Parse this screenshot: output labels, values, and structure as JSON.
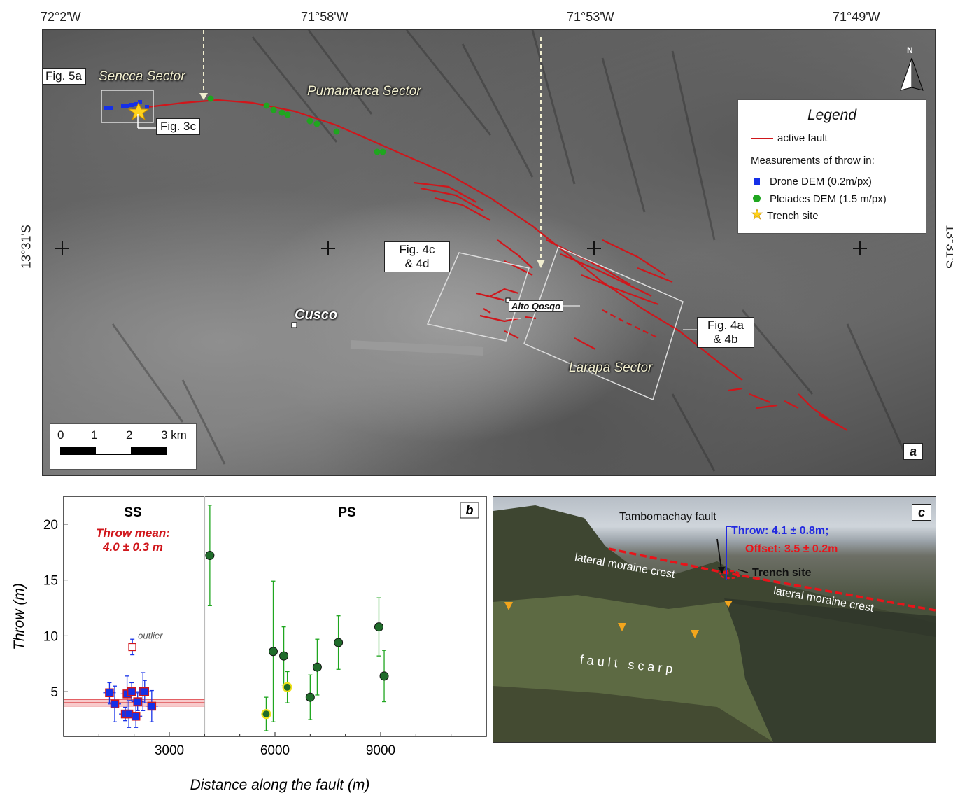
{
  "map": {
    "coords_top": [
      "72°2'W",
      "71°58'W",
      "71°53'W",
      "71°49'W"
    ],
    "coord_left": "13°31'S",
    "coord_right": "13°31'S",
    "sectors": {
      "sencca": "Sencca Sector",
      "pumamarca": "Pumamarca Sector",
      "larapa": "Larapa Sector"
    },
    "places": {
      "cusco": "Cusco",
      "alto_qosqo": "Alto Qosqo"
    },
    "fig_labels": {
      "fig5a": "Fig. 5a",
      "fig3c": "Fig. 3c",
      "fig4c_l1": "Fig. 4c",
      "fig4c_l2": "& 4d",
      "fig4a_l1": "Fig. 4a",
      "fig4a_l2": "& 4b"
    },
    "north": "N",
    "panel": "a",
    "scale": {
      "ticks": [
        "0",
        "1",
        "2",
        "3 km"
      ]
    },
    "legend": {
      "title": "Legend",
      "fault": "active fault",
      "heading": "Measurements of throw in:",
      "drone": "Drone DEM (0.2m/px)",
      "pleiades": "Pleiades DEM (1.5 m/px)",
      "trench": "Trench site"
    },
    "colors": {
      "fault": "#d0161b",
      "drone": "#1530e8",
      "pleiades": "#1fa61f",
      "trench": "#ffd21a"
    }
  },
  "chart_data": {
    "type": "scatter",
    "panel": "b",
    "xlabel": "Distance along the fault (m)",
    "ylabel": "Throw (m)",
    "xlim": [
      0,
      12000
    ],
    "ylim": [
      1,
      22.5
    ],
    "xticks": [
      3000,
      6000,
      9000
    ],
    "yticks": [
      5,
      10,
      15,
      20
    ],
    "divider_x": 4000,
    "section_labels": {
      "ss": "SS",
      "ps": "PS"
    },
    "mean_text_l1": "Throw mean:",
    "mean_text_l2": "4.0 ± 0.3 m",
    "mean": {
      "value": 4.0,
      "sd": 0.3,
      "x_range": [
        0,
        4000
      ]
    },
    "outlier_label": "outlier",
    "series": [
      {
        "kind": "drone",
        "points": [
          {
            "x": 1300,
            "y": 4.9,
            "err": 0.9
          },
          {
            "x": 1450,
            "y": 3.9,
            "err": 1.6
          },
          {
            "x": 1750,
            "y": 3.0,
            "err": 0.6
          },
          {
            "x": 1800,
            "y": 4.8,
            "err": 1.6
          },
          {
            "x": 1850,
            "y": 3.0,
            "err": 1.2
          },
          {
            "x": 1930,
            "y": 5.0,
            "err": 0.8
          },
          {
            "x": 2050,
            "y": 2.8,
            "err": 1.0
          },
          {
            "x": 2100,
            "y": 4.1,
            "err": 0.8
          },
          {
            "x": 2250,
            "y": 5.0,
            "err": 1.7
          },
          {
            "x": 2300,
            "y": 5.0,
            "err": 1.0
          },
          {
            "x": 2500,
            "y": 3.7,
            "err": 1.4
          }
        ]
      },
      {
        "kind": "pleiades",
        "points": [
          {
            "x": 4150,
            "y": 17.2,
            "err": 4.5
          },
          {
            "x": 5950,
            "y": 8.6,
            "err": 6.3
          },
          {
            "x": 6250,
            "y": 8.2,
            "err": 2.6
          },
          {
            "x": 7000,
            "y": 4.5,
            "err": 2.0
          },
          {
            "x": 7200,
            "y": 7.2,
            "err": 2.5
          },
          {
            "x": 7800,
            "y": 9.4,
            "err": 2.4
          },
          {
            "x": 8950,
            "y": 10.8,
            "err": 2.6
          },
          {
            "x": 9100,
            "y": 6.4,
            "err": 2.3
          }
        ]
      },
      {
        "kind": "pleiades-highlight",
        "points": [
          {
            "x": 5750,
            "y": 3.0,
            "err": 1.5
          },
          {
            "x": 6350,
            "y": 5.4,
            "err": 1.4
          }
        ]
      },
      {
        "kind": "outlier",
        "points": [
          {
            "x": 1950,
            "y": 9.0,
            "err": 0.7
          }
        ]
      }
    ]
  },
  "photo": {
    "panel": "c",
    "fault_name": "Tambomachay fault",
    "throw": "Throw: 4.1 ± 0.8m;",
    "offset": "Offset: 3.5 ± 0.2m",
    "trench": "Trench site",
    "moraine1": "lateral moraine crest",
    "moraine2": "lateral moraine crest",
    "scarp": "f a u l t   s c a r p"
  }
}
